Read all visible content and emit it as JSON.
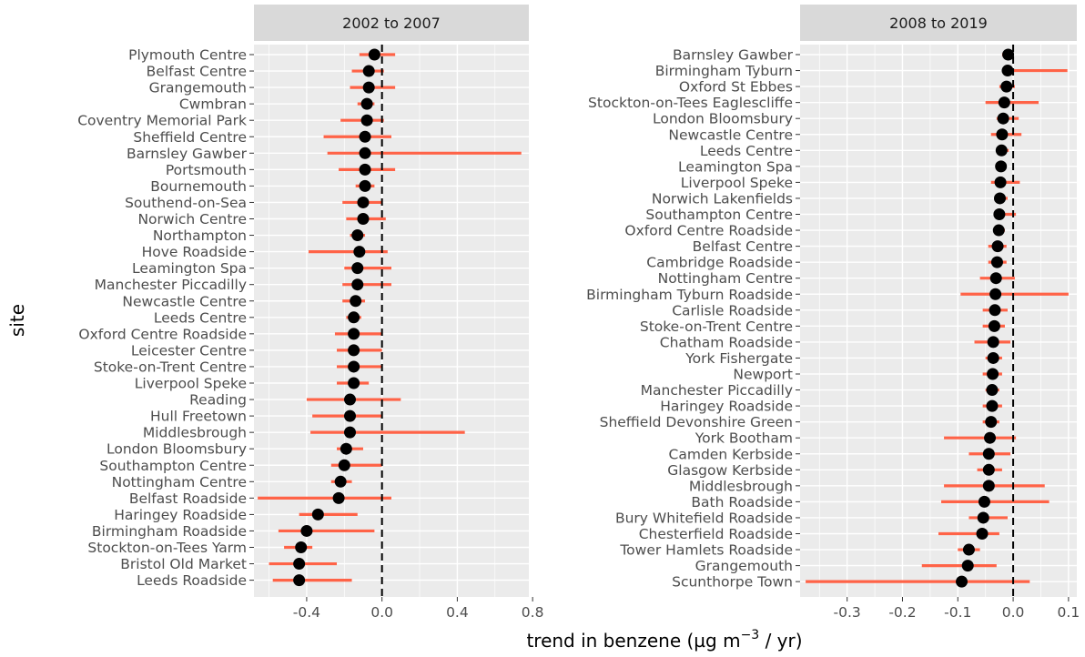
{
  "chart_data": [
    {
      "type": "scatter",
      "subtype": "point-range",
      "title": "2002 to 2007",
      "xlim": [
        -0.68,
        0.78
      ],
      "xticks": [
        -0.4,
        0.0,
        0.4,
        0.8
      ],
      "xtick_labels": [
        "-0.4",
        "0.0",
        "0.4",
        "0.8"
      ],
      "reference_line": 0,
      "sites": [
        "Plymouth Centre",
        "Belfast Centre",
        "Grangemouth",
        "Cwmbran",
        "Coventry Memorial Park",
        "Sheffield Centre",
        "Barnsley Gawber",
        "Portsmouth",
        "Bournemouth",
        "Southend-on-Sea",
        "Norwich Centre",
        "Northampton",
        "Hove Roadside",
        "Leamington Spa",
        "Manchester Piccadilly",
        "Newcastle Centre",
        "Leeds Centre",
        "Oxford Centre Roadside",
        "Leicester Centre",
        "Stoke-on-Trent Centre",
        "Liverpool Speke",
        "Reading",
        "Hull Freetown",
        "Middlesbrough",
        "London Bloomsbury",
        "Southampton Centre",
        "Nottingham Centre",
        "Belfast Roadside",
        "Haringey Roadside",
        "Birmingham Roadside",
        "Stockton-on-Tees Yarm",
        "Bristol Old Market",
        "Leeds Roadside"
      ],
      "trend": [
        -0.04,
        -0.07,
        -0.07,
        -0.08,
        -0.08,
        -0.09,
        -0.09,
        -0.09,
        -0.09,
        -0.1,
        -0.1,
        -0.13,
        -0.12,
        -0.13,
        -0.13,
        -0.14,
        -0.15,
        -0.15,
        -0.15,
        -0.15,
        -0.15,
        -0.17,
        -0.17,
        -0.17,
        -0.19,
        -0.2,
        -0.22,
        -0.23,
        -0.34,
        -0.4,
        -0.43,
        -0.44,
        -0.44
      ],
      "lower": [
        -0.12,
        -0.16,
        -0.17,
        -0.13,
        -0.22,
        -0.31,
        -0.29,
        -0.23,
        -0.14,
        -0.21,
        -0.19,
        -0.17,
        -0.39,
        -0.2,
        -0.21,
        -0.21,
        -0.19,
        -0.25,
        -0.24,
        -0.24,
        -0.24,
        -0.4,
        -0.37,
        -0.38,
        -0.24,
        -0.27,
        -0.27,
        -0.66,
        -0.44,
        -0.55,
        -0.52,
        -0.6,
        -0.58
      ],
      "upper": [
        0.07,
        0.01,
        0.07,
        -0.04,
        0.01,
        0.05,
        0.74,
        0.07,
        -0.04,
        0.0,
        0.02,
        -0.09,
        0.03,
        0.05,
        0.05,
        -0.09,
        -0.11,
        0.0,
        0.0,
        0.0,
        -0.07,
        0.1,
        0.0,
        0.44,
        -0.1,
        0.0,
        -0.16,
        0.05,
        -0.13,
        -0.04,
        -0.37,
        -0.24,
        -0.16
      ]
    },
    {
      "type": "scatter",
      "subtype": "point-range",
      "title": "2008 to 2019",
      "xlim": [
        -0.385,
        0.115
      ],
      "xticks": [
        -0.3,
        -0.2,
        -0.1,
        0.0,
        0.1
      ],
      "xtick_labels": [
        "-0.3",
        "-0.2",
        "-0.1",
        "0.0",
        "0.1"
      ],
      "reference_line": 0,
      "sites": [
        "Barnsley Gawber",
        "Birmingham Tyburn",
        "Oxford St Ebbes",
        "Stockton-on-Tees Eaglescliffe",
        "London Bloomsbury",
        "Newcastle Centre",
        "Leeds Centre",
        "Leamington Spa",
        "Liverpool Speke",
        "Norwich Lakenfields",
        "Southampton Centre",
        "Oxford Centre Roadside",
        "Belfast Centre",
        "Cambridge Roadside",
        "Nottingham Centre",
        "Birmingham Tyburn Roadside",
        "Carlisle Roadside",
        "Stoke-on-Trent Centre",
        "Chatham Roadside",
        "York Fishergate",
        "Newport",
        "Manchester Piccadilly",
        "Haringey Roadside",
        "Sheffield Devonshire Green",
        "York Bootham",
        "Camden Kerbside",
        "Glasgow Kerbside",
        "Middlesbrough",
        "Bath Roadside",
        "Bury Whitefield Roadside",
        "Chesterfield Roadside",
        "Tower Hamlets Roadside",
        "Grangemouth",
        "Scunthorpe Town"
      ],
      "trend": [
        -0.009,
        -0.01,
        -0.012,
        -0.016,
        -0.018,
        -0.02,
        -0.021,
        -0.022,
        -0.023,
        -0.024,
        -0.025,
        -0.026,
        -0.028,
        -0.029,
        -0.031,
        -0.032,
        -0.033,
        -0.034,
        -0.036,
        -0.036,
        -0.037,
        -0.038,
        -0.038,
        -0.04,
        -0.042,
        -0.044,
        -0.044,
        -0.044,
        -0.052,
        -0.054,
        -0.056,
        -0.08,
        -0.082,
        -0.093
      ],
      "lower": [
        -0.02,
        -0.018,
        -0.025,
        -0.05,
        -0.03,
        -0.04,
        -0.03,
        -0.03,
        -0.04,
        -0.03,
        -0.035,
        -0.035,
        -0.045,
        -0.045,
        -0.06,
        -0.095,
        -0.055,
        -0.055,
        -0.07,
        -0.05,
        -0.055,
        -0.05,
        -0.055,
        -0.055,
        -0.125,
        -0.08,
        -0.065,
        -0.125,
        -0.13,
        -0.08,
        -0.135,
        -0.1,
        -0.165,
        -0.375
      ],
      "upper": [
        0.0,
        0.098,
        0.003,
        0.046,
        0.01,
        0.015,
        -0.008,
        -0.012,
        0.012,
        -0.01,
        0.005,
        -0.015,
        -0.012,
        -0.012,
        0.003,
        0.1,
        -0.01,
        -0.015,
        -0.005,
        -0.02,
        -0.02,
        -0.025,
        -0.02,
        -0.025,
        0.005,
        -0.005,
        -0.02,
        0.057,
        0.065,
        -0.01,
        -0.025,
        -0.06,
        -0.03,
        0.03
      ]
    }
  ],
  "axes": {
    "ylabel": "site",
    "xlabel_main": "trend in benzene (µg m",
    "xlabel_sup": "−3",
    "xlabel_tail": " / yr)"
  },
  "colors": {
    "error_bar": "#ff6347",
    "point": "#000000",
    "panel": "#ebebeb",
    "strip": "#d9d9d9"
  }
}
